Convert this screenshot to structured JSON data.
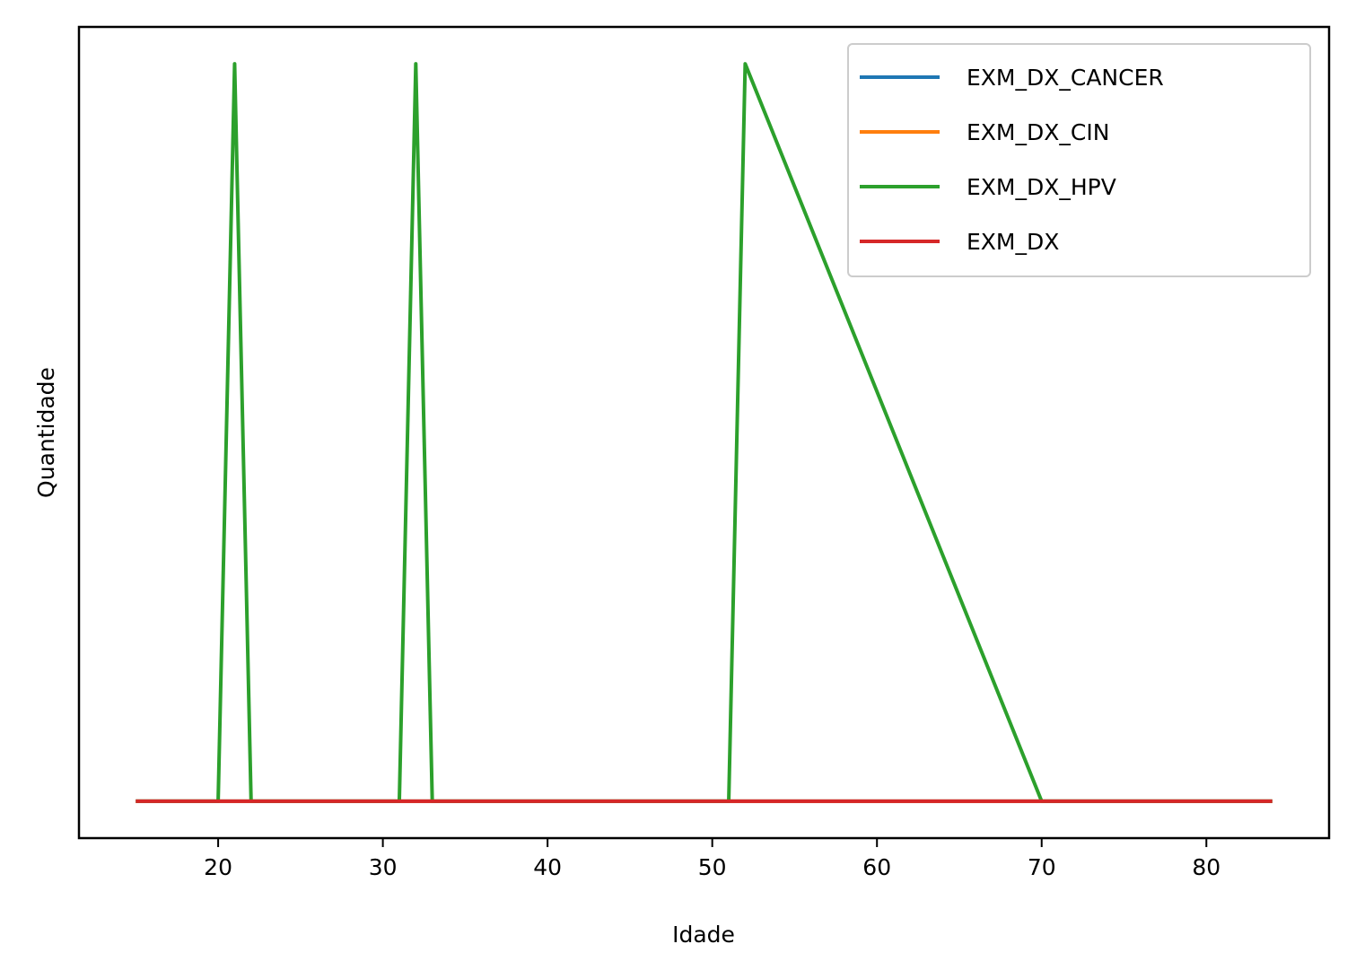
{
  "chart_data": {
    "type": "line",
    "xlabel": "Idade",
    "ylabel": "Quantidade",
    "xlim": [
      11.55,
      87.45
    ],
    "ylim": [
      -0.05,
      1.05
    ],
    "xticks": [
      20,
      30,
      40,
      50,
      60,
      70,
      80
    ],
    "yticks": [],
    "grid": false,
    "legend_position": "top-right",
    "series": [
      {
        "name": "EXM_DX_CANCER",
        "color": "#1f77b4",
        "x": [
          15,
          84
        ],
        "y": [
          0,
          0
        ]
      },
      {
        "name": "EXM_DX_CIN",
        "color": "#ff7f0e",
        "x": [
          15,
          84
        ],
        "y": [
          0,
          0
        ]
      },
      {
        "name": "EXM_DX_HPV",
        "color": "#2ca02c",
        "x": [
          15,
          20,
          21,
          22,
          31,
          32,
          33,
          51,
          52,
          70,
          84
        ],
        "y": [
          0,
          0,
          1,
          0,
          0,
          1,
          0,
          0,
          1,
          0,
          0
        ]
      },
      {
        "name": "EXM_DX",
        "color": "#d62728",
        "x": [
          15,
          84
        ],
        "y": [
          0,
          0
        ]
      }
    ]
  }
}
